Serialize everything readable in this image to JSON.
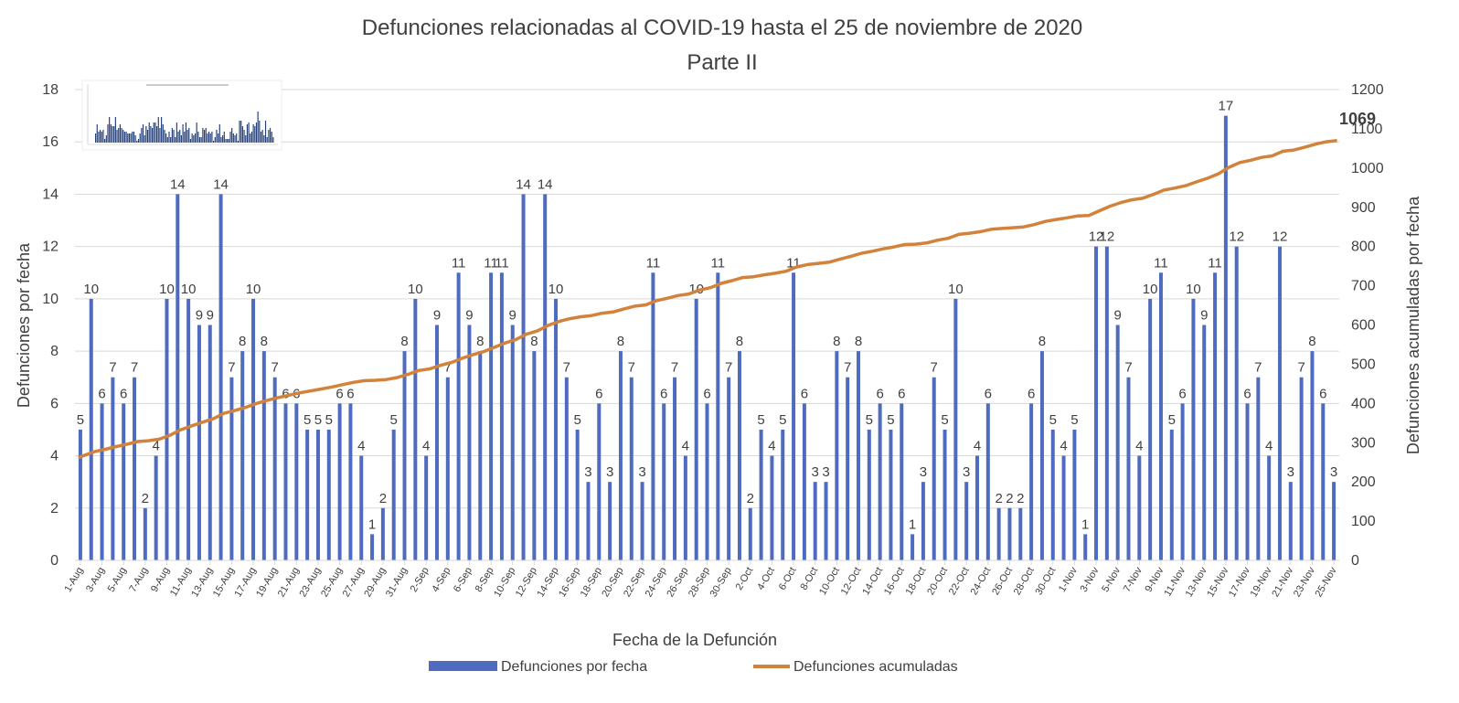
{
  "chart_data": {
    "type": "bar+line",
    "title": "Defunciones relacionadas al COVID-19 hasta el 25 de noviembre de 2020",
    "subtitle": "Parte II",
    "xlabel": "Fecha de la Defunción",
    "ylabel_left": "Defunciones por fecha",
    "ylabel_right": "Defunciones acumuladas por fecha",
    "ylim_left": [
      0,
      18
    ],
    "ylim_right": [
      0,
      1200
    ],
    "left_ticks": [
      0,
      2,
      4,
      6,
      8,
      10,
      12,
      14,
      16,
      18
    ],
    "right_ticks": [
      0,
      100,
      200,
      300,
      400,
      500,
      600,
      700,
      800,
      900,
      1000,
      1100,
      1200
    ],
    "grid": true,
    "legend_position": "bottom",
    "colors": {
      "bars": "#4f6bbf",
      "line": "#d2823b",
      "grid": "#d9d9d9"
    },
    "x_tick_labels": [
      "1-Aug",
      "3-Aug",
      "5-Aug",
      "7-Aug",
      "9-Aug",
      "11-Aug",
      "13-Aug",
      "15-Aug",
      "17-Aug",
      "19-Aug",
      "21-Aug",
      "23-Aug",
      "25-Aug",
      "27-Aug",
      "29-Aug",
      "31-Aug",
      "2-Sep",
      "4-Sep",
      "6-Sep",
      "8-Sep",
      "10-Sep",
      "12-Sep",
      "14-Sep",
      "16-Sep",
      "18-Sep",
      "20-Sep",
      "22-Sep",
      "24-Sep",
      "26-Sep",
      "28-Sep",
      "30-Sep",
      "2-Oct",
      "4-Oct",
      "6-Oct",
      "8-Oct",
      "10-Oct",
      "12-Oct",
      "14-Oct",
      "16-Oct",
      "18-Oct",
      "20-Oct",
      "22-Oct",
      "24-Oct",
      "26-Oct",
      "28-Oct",
      "30-Oct",
      "1-Nov",
      "3-Nov",
      "5-Nov",
      "7-Nov",
      "9-Nov",
      "11-Nov",
      "13-Nov",
      "15-Nov",
      "17-Nov",
      "19-Nov",
      "21-Nov",
      "23-Nov",
      "25-Nov"
    ],
    "series": [
      {
        "name": "Defunciones por fecha",
        "type": "bar",
        "axis": "left",
        "values": [
          5,
          10,
          6,
          7,
          6,
          7,
          2,
          4,
          10,
          14,
          10,
          9,
          9,
          14,
          7,
          8,
          10,
          8,
          7,
          6,
          6,
          5,
          5,
          5,
          6,
          6,
          4,
          1,
          2,
          5,
          8,
          10,
          4,
          9,
          7,
          11,
          9,
          8,
          11,
          11,
          9,
          14,
          8,
          14,
          10,
          7,
          5,
          3,
          6,
          3,
          8,
          7,
          3,
          11,
          6,
          7,
          4,
          10,
          6,
          11,
          7,
          8,
          2,
          5,
          4,
          5,
          11,
          6,
          3,
          3,
          8,
          7,
          8,
          5,
          6,
          5,
          6,
          1,
          3,
          7,
          5,
          10,
          3,
          4,
          6,
          2,
          2,
          2,
          6,
          8,
          5,
          4,
          5,
          1,
          12,
          12,
          9,
          7,
          4,
          10,
          11,
          5,
          6,
          10,
          9,
          11,
          17,
          12,
          6,
          7,
          4,
          12,
          3,
          7,
          8,
          6,
          3
        ]
      },
      {
        "name": "Defunciones acumuladas",
        "type": "line",
        "axis": "right",
        "start": 262,
        "final_label": "1069"
      }
    ]
  }
}
